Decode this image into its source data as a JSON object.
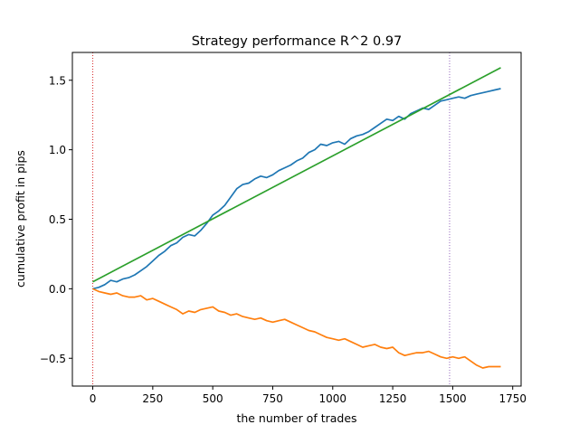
{
  "chart_data": {
    "type": "line",
    "title": "Strategy performance R^2 0.97",
    "xlabel": "the number of trades",
    "ylabel": "cumulative profit in pips",
    "xlim": [
      -85,
      1785
    ],
    "ylim": [
      -0.7,
      1.7
    ],
    "xticks": [
      0,
      250,
      500,
      750,
      1000,
      1250,
      1500,
      1750
    ],
    "yticks": [
      -0.5,
      0.0,
      0.5,
      1.0,
      1.5
    ],
    "xtick_labels": [
      "0",
      "250",
      "500",
      "750",
      "1000",
      "1250",
      "1500",
      "1750"
    ],
    "ytick_labels": [
      "−0.5",
      "0.0",
      "0.5",
      "1.0",
      "1.5"
    ],
    "grid": false,
    "legend": "none",
    "vlines": [
      {
        "x": 0,
        "color": "#d62728",
        "style": "dotted"
      },
      {
        "x": 1487,
        "color": "#9467bd",
        "style": "dotted"
      }
    ],
    "series": [
      {
        "color": "#1f77b4",
        "x": [
          0,
          25,
          50,
          75,
          100,
          125,
          150,
          175,
          200,
          225,
          250,
          275,
          300,
          325,
          350,
          375,
          400,
          425,
          450,
          475,
          500,
          525,
          550,
          575,
          600,
          625,
          650,
          675,
          700,
          725,
          750,
          775,
          800,
          825,
          850,
          875,
          900,
          925,
          950,
          975,
          1000,
          1025,
          1050,
          1075,
          1100,
          1125,
          1150,
          1175,
          1200,
          1225,
          1250,
          1275,
          1300,
          1325,
          1350,
          1375,
          1400,
          1425,
          1450,
          1475,
          1500,
          1525,
          1550,
          1575,
          1600,
          1625,
          1650,
          1675,
          1700
        ],
        "y": [
          0.0,
          0.01,
          0.03,
          0.06,
          0.05,
          0.07,
          0.08,
          0.1,
          0.13,
          0.16,
          0.2,
          0.24,
          0.27,
          0.31,
          0.33,
          0.37,
          0.39,
          0.38,
          0.42,
          0.47,
          0.53,
          0.56,
          0.6,
          0.66,
          0.72,
          0.75,
          0.76,
          0.79,
          0.81,
          0.8,
          0.82,
          0.85,
          0.87,
          0.89,
          0.92,
          0.94,
          0.98,
          1.0,
          1.04,
          1.03,
          1.05,
          1.06,
          1.04,
          1.08,
          1.1,
          1.11,
          1.13,
          1.16,
          1.19,
          1.22,
          1.21,
          1.24,
          1.22,
          1.26,
          1.28,
          1.3,
          1.29,
          1.32,
          1.35,
          1.36,
          1.37,
          1.38,
          1.37,
          1.39,
          1.4,
          1.41,
          1.42,
          1.43,
          1.44
        ]
      },
      {
        "color": "#ff7f0e",
        "x": [
          0,
          25,
          50,
          75,
          100,
          125,
          150,
          175,
          200,
          225,
          250,
          275,
          300,
          325,
          350,
          375,
          400,
          425,
          450,
          475,
          500,
          525,
          550,
          575,
          600,
          625,
          650,
          675,
          700,
          725,
          750,
          775,
          800,
          825,
          850,
          875,
          900,
          925,
          950,
          975,
          1000,
          1025,
          1050,
          1075,
          1100,
          1125,
          1150,
          1175,
          1200,
          1225,
          1250,
          1275,
          1300,
          1325,
          1350,
          1375,
          1400,
          1425,
          1450,
          1475,
          1500,
          1525,
          1550,
          1575,
          1600,
          1625,
          1650,
          1675,
          1700
        ],
        "y": [
          0.0,
          -0.02,
          -0.03,
          -0.04,
          -0.03,
          -0.05,
          -0.06,
          -0.06,
          -0.05,
          -0.08,
          -0.07,
          -0.09,
          -0.11,
          -0.13,
          -0.15,
          -0.18,
          -0.16,
          -0.17,
          -0.15,
          -0.14,
          -0.13,
          -0.16,
          -0.17,
          -0.19,
          -0.18,
          -0.2,
          -0.21,
          -0.22,
          -0.21,
          -0.23,
          -0.24,
          -0.23,
          -0.22,
          -0.24,
          -0.26,
          -0.28,
          -0.3,
          -0.31,
          -0.33,
          -0.35,
          -0.36,
          -0.37,
          -0.36,
          -0.38,
          -0.4,
          -0.42,
          -0.41,
          -0.4,
          -0.42,
          -0.43,
          -0.42,
          -0.46,
          -0.48,
          -0.47,
          -0.46,
          -0.46,
          -0.45,
          -0.47,
          -0.49,
          -0.5,
          -0.49,
          -0.5,
          -0.49,
          -0.52,
          -0.55,
          -0.57,
          -0.56,
          -0.56,
          -0.56
        ]
      },
      {
        "color": "#2ca02c",
        "x": [
          0,
          1700
        ],
        "y": [
          0.05,
          1.59
        ]
      }
    ]
  }
}
